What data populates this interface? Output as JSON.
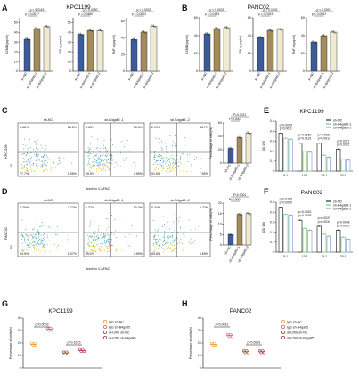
{
  "colors": {
    "nc": "#3d5a99",
    "b1": "#a38c5a",
    "b2": "#f0ead2",
    "line_nc": "#2e2e2e",
    "line_b1": "#7dcf7d",
    "line_b2": "#8aa0d6",
    "igg_nc": "#f09a2e",
    "igg_b4": "#f05a8a",
    "ah_nc": "#8b5a2b",
    "ah_b4": "#b03070"
  },
  "panel_labels": [
    "A",
    "B",
    "C",
    "D",
    "E",
    "F",
    "G",
    "H"
  ],
  "A": {
    "title": "KPC1199",
    "groups": [
      "sh-NC",
      "sh-B4galt5-1",
      "sh-B4galt5-2"
    ]
  },
  "B": {
    "title": "PANC02",
    "groups": [
      "sh-NC",
      "sh-B4galt5-1",
      "sh-B4galt5-2"
    ]
  },
  "C": {
    "side": "KPC1199",
    "flow_titles": [
      "sh-NC",
      "sh-B4galt5 -1",
      "sh-B4galt5 -2"
    ],
    "xaxis": "Annexin V-AF647",
    "yaxis": "PI",
    "quads": [
      [
        "0.68%",
        "16.6%",
        "77.7%",
        "5.05%"
      ],
      [
        "3.65%",
        "33.3%",
        "59.5%",
        "4.55%"
      ],
      [
        "2.19%",
        "38.7%",
        "51.6%",
        "7.50%"
      ]
    ]
  },
  "D": {
    "side": "PANC02",
    "flow_titles": [
      "sh-NC",
      "sh-B4galt5 -1",
      "sh-B4galt5 -2"
    ],
    "xaxis": "Annexin V-AF647",
    "yaxis": "PI",
    "quads": [
      [
        "0.29%",
        "3.77%",
        "94.9%",
        "1.07%"
      ],
      [
        "0.37%",
        "10.0%",
        "85.0%",
        "4.59%"
      ],
      [
        "0.34%",
        "9.22%",
        "84.8%",
        "5.69%"
      ]
    ]
  },
  "E": {
    "title": "KPC1199",
    "legend": [
      "sh-NC",
      "sh-B4galt5-1",
      "sh-B4galt5-2"
    ]
  },
  "F": {
    "title": "PANC02",
    "legend": [
      "sh-NC",
      "sh-B4galt5-1",
      "sh-B4galt5-2"
    ]
  },
  "G": {
    "title": "KPC1199",
    "legend": [
      "IgG sh-NC",
      "IgG sh-B4galt5",
      "αH-2Kb sh-NC",
      "αH-2Kb sh-B4galt5"
    ]
  },
  "H": {
    "title": "PANC02",
    "legend": [
      "IgG sh-NC",
      "IgG sh-B4galt5",
      "αH-2Kb sh-NC",
      "αH-2Kb sh-B4galt5"
    ]
  },
  "chart_data": [
    {
      "id": "A1",
      "type": "bar",
      "categories": [
        "sh-NC",
        "sh-B4galt5-1",
        "sh-B4galt5-2"
      ],
      "values": [
        33,
        44,
        46
      ],
      "ylabel": "GZMB (pg/ml)",
      "yticks": [
        0,
        10,
        20,
        30,
        40,
        50
      ],
      "ylim": [
        0,
        55
      ],
      "annotations": [
        "p = 0.0119",
        "p = 0.0017"
      ]
    },
    {
      "id": "A2",
      "type": "bar",
      "categories": [
        "sh-NC",
        "sh-B4galt5-1",
        "sh-B4galt5-2"
      ],
      "values": [
        38,
        42,
        42
      ],
      "ylabel": "IFN-γ (pg/ml)",
      "yticks": [
        0,
        10,
        20,
        30,
        40,
        50
      ],
      "ylim": [
        0,
        55
      ],
      "annotations": [
        "p = 0.0190",
        "p = 0.0460"
      ]
    },
    {
      "id": "A3",
      "type": "bar",
      "categories": [
        "sh-NC",
        "sh-B4galt5-1",
        "sh-B4galt5-2"
      ],
      "values": [
        38,
        47,
        54
      ],
      "ylabel": "TNF-α (pg/ml)",
      "yticks": [
        0,
        20,
        40,
        60
      ],
      "ylim": [
        0,
        64
      ],
      "annotations": [
        "p < 0.0002",
        "p = 0.0002"
      ]
    },
    {
      "id": "B1",
      "type": "bar",
      "categories": [
        "sh-NC",
        "sh-B4galt5-1",
        "sh-B4galt5-2"
      ],
      "values": [
        42,
        48,
        49
      ],
      "ylabel": "GZMB (pg/ml)",
      "yticks": [
        0,
        20,
        40,
        60
      ],
      "ylim": [
        0,
        60
      ],
      "annotations": [
        "p < 0.0002",
        "p = 0.0193"
      ]
    },
    {
      "id": "B2",
      "type": "bar",
      "categories": [
        "sh-NC",
        "sh-B4galt5-1",
        "sh-B4galt5-2"
      ],
      "values": [
        38,
        46,
        47
      ],
      "ylabel": "IFN-γ (pg/ml)",
      "yticks": [
        0,
        20,
        40,
        60
      ],
      "ylim": [
        0,
        60
      ],
      "annotations": [
        "p = 0.0002",
        "p = 0.0193"
      ]
    },
    {
      "id": "B3",
      "type": "bar",
      "categories": [
        "sh-NC",
        "sh-B4galt5-1",
        "sh-B4galt5-2"
      ],
      "values": [
        33,
        40,
        44
      ],
      "ylabel": "TNF-α (pg/ml)",
      "yticks": [
        0,
        20,
        40,
        60
      ],
      "ylim": [
        0,
        60
      ],
      "annotations": [
        "p < 0.0002",
        "p = 0.0002"
      ]
    },
    {
      "id": "C",
      "type": "bar",
      "categories": [
        "sh-NC",
        "sh-B4galt5-1",
        "sh-B4galt5-2"
      ],
      "values": [
        22,
        38,
        45
      ],
      "ylabel": "Percentage of cells(%)",
      "yticks": [
        0,
        20,
        40,
        60
      ],
      "ylim": [
        0,
        60
      ],
      "annotations": [
        "P=0.0021",
        "P<0.0001"
      ]
    },
    {
      "id": "D",
      "type": "bar",
      "categories": [
        "sh-NC",
        "sh-B4galt5-1",
        "sh-B4galt5-2"
      ],
      "values": [
        5,
        14.6,
        15
      ],
      "ylabel": "Percentage of cells(%)",
      "yticks": [
        0,
        5,
        10,
        15,
        20
      ],
      "ylim": [
        0,
        20
      ],
      "annotations": [
        "P<0.0001",
        "P<0.0001"
      ]
    },
    {
      "id": "E",
      "type": "bar",
      "categories": [
        "5:1",
        "10:1",
        "15:1",
        "20:1"
      ],
      "series": [
        {
          "name": "sh-NC",
          "values": [
            0.38,
            0.28,
            0.28,
            0.22
          ]
        },
        {
          "name": "sh-B4galt5-1",
          "values": [
            0.33,
            0.2,
            0.16,
            0.12
          ]
        },
        {
          "name": "sh-B4galt5-2",
          "values": [
            0.32,
            0.19,
            0.14,
            0.11
          ]
        }
      ],
      "ylabel": "OD 490",
      "yticks": [
        0,
        0.1,
        0.2,
        0.3,
        0.4,
        0.5
      ],
      "ylim": [
        0,
        0.5
      ],
      "annotations": [
        "p=0.0005",
        "p=0.0011",
        "p=0.0150",
        "p=0.0115",
        "p=0.0020",
        "p=0.0012",
        "p=0.0371",
        "p=0.0022"
      ]
    },
    {
      "id": "F",
      "type": "bar",
      "categories": [
        "5:1",
        "10:1",
        "15:1",
        "20:1"
      ],
      "series": [
        {
          "name": "sh-NC",
          "values": [
            0.45,
            0.32,
            0.26,
            0.22
          ]
        },
        {
          "name": "sh-B4galt5-1",
          "values": [
            0.38,
            0.24,
            0.18,
            0.15
          ]
        },
        {
          "name": "sh-B4galt5-2",
          "values": [
            0.37,
            0.22,
            0.16,
            0.13
          ]
        }
      ],
      "ylabel": "OD 490",
      "yticks": [
        0,
        0.1,
        0.2,
        0.3,
        0.4,
        0.5
      ],
      "ylim": [
        0,
        0.5
      ],
      "annotations": [
        "p=0.0105",
        "p=0.0050",
        "p=0.0042",
        "p=0.0035",
        "p=0.0020",
        "p=0.0034",
        "p=0.0048",
        "p=0.0010"
      ]
    },
    {
      "id": "G",
      "type": "bar",
      "categories": [
        "IgG sh-NC",
        "IgG sh-B4galt5",
        "αH-2Kb sh-NC",
        "αH-2Kb sh-B4galt5"
      ],
      "values": [
        19,
        31,
        12,
        14
      ],
      "ylabel": "Percentage of cells(%)",
      "yticks": [
        0,
        10,
        20,
        30,
        40
      ],
      "ylim": [
        0,
        40
      ],
      "annotations": [
        "p=0.0003",
        "p=0.1615"
      ]
    },
    {
      "id": "H",
      "type": "bar",
      "categories": [
        "IgG sh-NC",
        "IgG sh-B4galt5",
        "αH-2Kb sh-NC",
        "αH-2Kb sh-B4galt5"
      ],
      "values": [
        19,
        26,
        13,
        13
      ],
      "ylabel": "Percentage of cells(%)",
      "yticks": [
        0,
        10,
        20,
        30,
        40
      ],
      "ylim": [
        0,
        40
      ],
      "annotations": [
        "p=0.0011",
        "p=0.6991"
      ]
    }
  ]
}
